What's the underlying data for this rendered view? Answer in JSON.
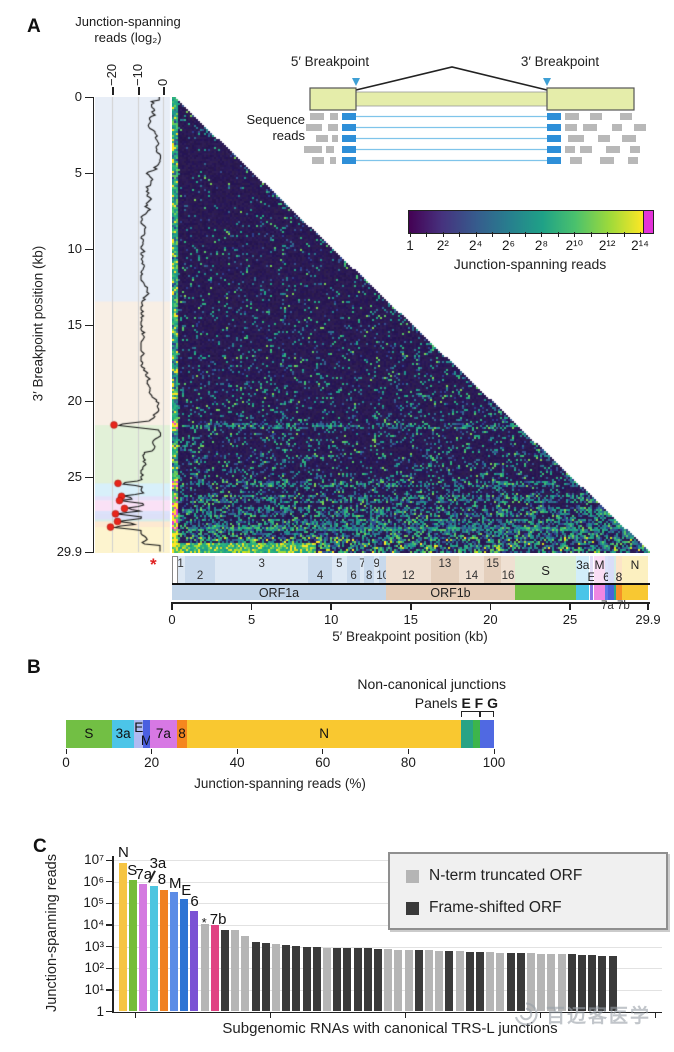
{
  "panel_labels": {
    "a": "A",
    "b": "B",
    "c": "C"
  },
  "watermark": {
    "text": "百迈客医学"
  },
  "chart_data": [
    {
      "id": "A",
      "type": "heatmap",
      "x_axis": {
        "title": "5′ Breakpoint position (kb)",
        "tick_labels": [
          "0",
          "5",
          "10",
          "15",
          "20",
          "25",
          "29.9"
        ],
        "tick_vals": [
          0,
          5,
          10,
          15,
          20,
          25,
          29.9
        ],
        "range_kb": [
          0,
          29.9
        ]
      },
      "y_axis": {
        "title": "3′ Breakpoint position (kb)",
        "tick_labels": [
          "0",
          "5",
          "10",
          "15",
          "20",
          "25",
          "29.9"
        ],
        "tick_vals": [
          0,
          5,
          10,
          15,
          20,
          25,
          29.9
        ],
        "range_kb": [
          0,
          29.9
        ]
      },
      "trace_axis": {
        "title": [
          "Junction-spanning",
          "reads (log₂)"
        ],
        "tick_labels": [
          "−20",
          "−10",
          "0"
        ],
        "tick_vals": [
          -20,
          -10,
          0
        ]
      },
      "leader_marker": "*",
      "canonical_junctions": [
        {
          "gene": "S",
          "kb": 21.55,
          "peak": 19.6
        },
        {
          "gene": "3a",
          "kb": 25.39,
          "peak": 18.0
        },
        {
          "gene": "E",
          "kb": 26.24,
          "peak": 16.6
        },
        {
          "gene": "M",
          "kb": 26.52,
          "peak": 17.4
        },
        {
          "gene": "6",
          "kb": 27.04,
          "peak": 15.4
        },
        {
          "gene": "7a",
          "kb": 27.39,
          "peak": 19.0
        },
        {
          "gene": "8",
          "kb": 27.89,
          "peak": 18.2
        },
        {
          "gene": "N",
          "kb": 28.26,
          "peak": 21.0
        }
      ],
      "trace_bands": [
        {
          "start": 0,
          "end": 13.44,
          "color": "#e8eef7"
        },
        {
          "start": 13.44,
          "end": 21.55,
          "color": "#f8efe5"
        },
        {
          "start": 21.56,
          "end": 25.38,
          "color": "#e2f1d8"
        },
        {
          "start": 25.39,
          "end": 26.22,
          "color": "#d8f0fa"
        },
        {
          "start": 26.24,
          "end": 26.47,
          "color": "#e6e2f9"
        },
        {
          "start": 26.52,
          "end": 27.19,
          "color": "#fae1f6"
        },
        {
          "start": 27.2,
          "end": 27.39,
          "color": "#dde3fa"
        },
        {
          "start": 27.39,
          "end": 27.76,
          "color": "#dce0f8"
        },
        {
          "start": 27.76,
          "end": 27.89,
          "color": "#d7eee8"
        },
        {
          "start": 27.89,
          "end": 28.26,
          "color": "#fde9d1"
        },
        {
          "start": 28.26,
          "end": 29.9,
          "color": "#fdf4cf"
        }
      ],
      "colorbar": {
        "title": "Junction-spanning reads",
        "tick_labels": [
          "1",
          "2²",
          "2⁴",
          "2⁶",
          "2⁸",
          "2¹⁰",
          "2¹²",
          "2¹⁴"
        ],
        "gradient": [
          "#440154",
          "#46327e",
          "#365c8d",
          "#277f8e",
          "#1fa187",
          "#4ac16d",
          "#9fda3a",
          "#fde725"
        ],
        "cap_color": "#e332d8"
      },
      "inset": {
        "label_5prime": "5′ Breakpoint",
        "label_3prime": "3′ Breakpoint",
        "reads_label": [
          "Sequence",
          "reads"
        ],
        "genome_color": "#e5edaa",
        "read_color": "#b8b8b8",
        "junction_color": "#2e8fd8",
        "breakpoint_marker_color": "#3e9fd4"
      },
      "heat_colors": {
        "base_rgb": [
          43,
          26,
          84
        ],
        "speckles_blue": [
          "#2d3f8c",
          "#34538e",
          "#31688e",
          "#2a768e",
          "#24868e"
        ],
        "speckles_teal": [
          "#1f968b",
          "#21a585",
          "#2db27d"
        ],
        "speckles_green": [
          "#44bf70",
          "#58c765",
          "#7ad151"
        ],
        "hot": [
          "#5ec962",
          "#a0da39",
          "#d2e21b",
          "#fde725",
          "#27ad81"
        ],
        "magenta": "#e23bd8",
        "yellow": "#fde725"
      },
      "genome_track": {
        "orf1a": {
          "label": "ORF1a",
          "start": 0,
          "end": 13.44,
          "bar_color": "#c2d5e9",
          "bg": "#e9eff7",
          "box_a": "#dde8f4",
          "box_b": "#c8d9ec"
        },
        "orf1b": {
          "label": "ORF1b",
          "start": 13.44,
          "end": 21.55,
          "bar_color": "#e5cdb8",
          "bg": "#f5ece3",
          "box_a": "#efe0d2",
          "box_b": "#e4cfbc"
        },
        "label_7a7b": "7a 7b",
        "leader_box": {
          "start": 0,
          "end": 0.27
        },
        "nsp": [
          {
            "label": "1",
            "start": 0.27,
            "end": 0.81,
            "row": "top"
          },
          {
            "label": "2",
            "start": 0.81,
            "end": 2.72,
            "row": "bottom"
          },
          {
            "label": "3",
            "start": 2.72,
            "end": 8.55,
            "row": "top"
          },
          {
            "label": "4",
            "start": 8.55,
            "end": 10.05,
            "row": "bottom"
          },
          {
            "label": "5",
            "start": 10.05,
            "end": 10.97,
            "row": "top"
          },
          {
            "label": "6",
            "start": 10.97,
            "end": 11.84,
            "row": "bottom"
          },
          {
            "label": "7",
            "start": 11.84,
            "end": 12.09,
            "row": "top"
          },
          {
            "label": "8",
            "start": 12.09,
            "end": 12.69,
            "row": "bottom"
          },
          {
            "label": "9",
            "start": 12.69,
            "end": 13.02,
            "row": "top"
          },
          {
            "label": "10",
            "start": 13.02,
            "end": 13.44,
            "row": "bottom"
          },
          {
            "label": "12",
            "start": 13.44,
            "end": 16.24,
            "row": "bottom"
          },
          {
            "label": "13",
            "start": 16.24,
            "end": 18.04,
            "row": "top"
          },
          {
            "label": "14",
            "start": 18.04,
            "end": 19.62,
            "row": "bottom"
          },
          {
            "label": "15",
            "start": 19.62,
            "end": 20.66,
            "row": "top"
          },
          {
            "label": "16",
            "start": 20.66,
            "end": 21.55,
            "row": "bottom"
          }
        ],
        "genes": [
          {
            "label": "S",
            "start": 21.56,
            "end": 25.38,
            "color": "#72bf44",
            "light": "#dcefd2",
            "lrow": "mid"
          },
          {
            "label": "3a",
            "start": 25.39,
            "end": 26.22,
            "color": "#4ac5e8",
            "light": "#d2eefa",
            "lrow": "top"
          },
          {
            "label": "E",
            "start": 26.24,
            "end": 26.47,
            "color": "#8677e8",
            "light": "#e2def8",
            "lrow": "bottom"
          },
          {
            "label": "M",
            "start": 26.52,
            "end": 27.19,
            "color": "#ef86e2",
            "light": "#fadef5",
            "lrow": "top"
          },
          {
            "label": "6",
            "start": 27.2,
            "end": 27.39,
            "color": "#5a78e8",
            "light": "#dbe2fa",
            "lrow": "bottom"
          },
          {
            "label": "7a",
            "start": 27.39,
            "end": 27.76,
            "color": "#4a62d8",
            "light": "#d9ddf8",
            "lrow": "none"
          },
          {
            "label": "7b",
            "start": 27.76,
            "end": 27.89,
            "color": "#2aa789",
            "light": "#d5ece6",
            "lrow": "none"
          },
          {
            "label": "8",
            "start": 27.89,
            "end": 28.26,
            "color": "#f49026",
            "light": "#fce4c8",
            "lrow": "bottom"
          },
          {
            "label": "N",
            "start": 28.27,
            "end": 29.9,
            "color": "#f8c832",
            "light": "#fcf0c0",
            "lrow": "top"
          }
        ]
      }
    },
    {
      "id": "B",
      "type": "stacked_bar",
      "axis": {
        "title": "Junction-spanning reads (%)",
        "tick_labels": [
          "0",
          "20",
          "40",
          "60",
          "80",
          "100"
        ],
        "tick_vals": [
          0,
          20,
          40,
          60,
          80,
          100
        ],
        "range": [
          0,
          100
        ]
      },
      "annotation": {
        "line1": "Non-canonical junctions",
        "line2_prefix": "Panels ",
        "line2_bold": "E F G"
      },
      "segments": [
        {
          "label": "S",
          "start": 0,
          "end": 10.7,
          "color": "#72bf44",
          "lpos": "mid"
        },
        {
          "label": "3a",
          "start": 10.7,
          "end": 16.0,
          "color": "#4cc5e8",
          "lpos": "mid"
        },
        {
          "label": "E",
          "start": 16.0,
          "end": 18.0,
          "color": "#b0baf2",
          "lpos": "top"
        },
        {
          "label": "M",
          "start": 18.0,
          "end": 19.6,
          "color": "#4a5fe0",
          "lpos": "bottom"
        },
        {
          "label": "7a",
          "start": 19.6,
          "end": 25.9,
          "color": "#d778e4",
          "lpos": "mid"
        },
        {
          "label": "8",
          "start": 25.9,
          "end": 28.3,
          "color": "#f5871f",
          "lpos": "mid"
        },
        {
          "label": "N",
          "start": 28.3,
          "end": 92.3,
          "color": "#f9c830",
          "lpos": "mid"
        },
        {
          "label": "",
          "start": 92.3,
          "end": 95.2,
          "color": "#29a385",
          "lpos": "none"
        },
        {
          "label": "",
          "start": 95.2,
          "end": 96.8,
          "color": "#3db54b",
          "lpos": "none"
        },
        {
          "label": "",
          "start": 96.8,
          "end": 100,
          "color": "#5069e2",
          "lpos": "none"
        }
      ],
      "brackets": [
        [
          92.3,
          96.8
        ],
        [
          96.8,
          100
        ]
      ]
    },
    {
      "id": "C",
      "type": "bar",
      "log_scale": true,
      "ylim": [
        1,
        10000000
      ],
      "y_axis": {
        "title": "Junction-spanning reads",
        "tick_labels": [
          "10⁷",
          "10⁶",
          "10⁵",
          "10⁴",
          "10³",
          "10²",
          "10¹",
          "1"
        ],
        "tick_vals": [
          10000000,
          1000000,
          100000,
          10000,
          1000,
          100,
          10,
          1
        ]
      },
      "x_axis": {
        "title": "Subgenomic RNAs with canonical TRS-L junctions"
      },
      "legend": [
        {
          "label": "N-term truncated ORF",
          "color": "#b5b5b5"
        },
        {
          "label": "Frame-shifted ORF",
          "color": "#3a3a3a"
        }
      ],
      "bars": [
        {
          "label": "N",
          "value": 7000000,
          "color": "#f6c443",
          "ldx": -1,
          "ldy": -19
        },
        {
          "label": "S",
          "value": 1200000,
          "color": "#76bc3a",
          "ldx": -2,
          "ldy": -18
        },
        {
          "label": "7a",
          "value": 800000,
          "color": "#d47ae0",
          "ldx": -4,
          "ldy": -18
        },
        {
          "label": "3a",
          "value": 650000,
          "color": "#4cc5e0",
          "ldx": 0,
          "ldy": -31,
          "connector": true
        },
        {
          "label": "8",
          "value": 400000,
          "color": "#f08121",
          "ldx": -2,
          "ldy": -19
        },
        {
          "label": "M",
          "value": 350000,
          "color": "#5c8ce6",
          "ldx": -1,
          "ldy": -17
        },
        {
          "label": "E",
          "value": 160000,
          "color": "#2d74d4",
          "ldx": 1,
          "ldy": -17
        },
        {
          "label": "6",
          "value": 45000,
          "color": "#7a52d4",
          "ldx": 0,
          "ldy": -18
        },
        {
          "label": "*",
          "value": 11500,
          "color": "#b5b5b5",
          "ldx": 1,
          "ldy": -9,
          "small": true
        },
        {
          "label": "7b",
          "value": 10000,
          "color": "#e04383",
          "ldx": -1,
          "ldy": -14
        },
        {
          "label": "",
          "value": 6000,
          "color": "#3a3a3a"
        },
        {
          "label": "",
          "value": 5800,
          "color": "#b5b5b5"
        },
        {
          "label": "",
          "value": 3000,
          "color": "#b5b5b5"
        },
        {
          "label": "",
          "value": 1600,
          "color": "#3a3a3a"
        },
        {
          "label": "",
          "value": 1400,
          "color": "#3a3a3a"
        },
        {
          "label": "",
          "value": 1300,
          "color": "#b5b5b5"
        },
        {
          "label": "",
          "value": 1150,
          "color": "#3a3a3a"
        },
        {
          "label": "",
          "value": 1050,
          "color": "#3a3a3a"
        },
        {
          "label": "",
          "value": 1000,
          "color": "#3a3a3a"
        },
        {
          "label": "",
          "value": 950,
          "color": "#3a3a3a"
        },
        {
          "label": "",
          "value": 900,
          "color": "#b5b5b5"
        },
        {
          "label": "",
          "value": 880,
          "color": "#3a3a3a"
        },
        {
          "label": "",
          "value": 860,
          "color": "#3a3a3a"
        },
        {
          "label": "",
          "value": 840,
          "color": "#3a3a3a"
        },
        {
          "label": "",
          "value": 820,
          "color": "#3a3a3a"
        },
        {
          "label": "",
          "value": 800,
          "color": "#3a3a3a"
        },
        {
          "label": "",
          "value": 760,
          "color": "#b5b5b5"
        },
        {
          "label": "",
          "value": 730,
          "color": "#b5b5b5"
        },
        {
          "label": "",
          "value": 700,
          "color": "#b5b5b5"
        },
        {
          "label": "",
          "value": 680,
          "color": "#3a3a3a"
        },
        {
          "label": "",
          "value": 660,
          "color": "#b5b5b5"
        },
        {
          "label": "",
          "value": 640,
          "color": "#b5b5b5"
        },
        {
          "label": "",
          "value": 620,
          "color": "#3a3a3a"
        },
        {
          "label": "",
          "value": 600,
          "color": "#b5b5b5"
        },
        {
          "label": "",
          "value": 580,
          "color": "#3a3a3a"
        },
        {
          "label": "",
          "value": 560,
          "color": "#3a3a3a"
        },
        {
          "label": "",
          "value": 540,
          "color": "#b5b5b5"
        },
        {
          "label": "",
          "value": 520,
          "color": "#b5b5b5"
        },
        {
          "label": "",
          "value": 500,
          "color": "#3a3a3a"
        },
        {
          "label": "",
          "value": 490,
          "color": "#3a3a3a"
        },
        {
          "label": "",
          "value": 480,
          "color": "#b5b5b5"
        },
        {
          "label": "",
          "value": 470,
          "color": "#b5b5b5"
        },
        {
          "label": "",
          "value": 460,
          "color": "#b5b5b5"
        },
        {
          "label": "",
          "value": 450,
          "color": "#b5b5b5"
        },
        {
          "label": "",
          "value": 440,
          "color": "#3a3a3a"
        },
        {
          "label": "",
          "value": 420,
          "color": "#3a3a3a"
        },
        {
          "label": "",
          "value": 400,
          "color": "#3a3a3a"
        },
        {
          "label": "",
          "value": 380,
          "color": "#3a3a3a"
        },
        {
          "label": "",
          "value": 360,
          "color": "#3a3a3a"
        }
      ]
    }
  ]
}
